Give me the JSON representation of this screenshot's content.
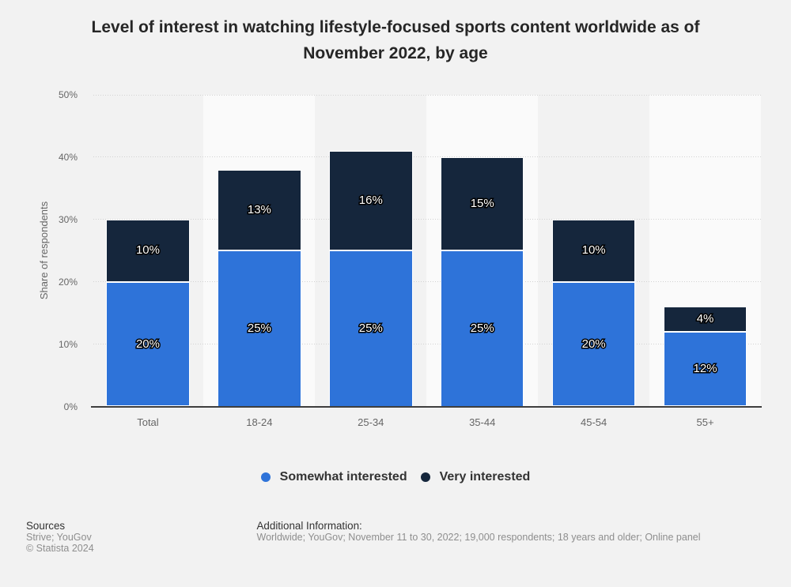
{
  "title": {
    "lines": [
      "Level of interest in watching lifestyle-focused sports content worldwide as of",
      "November 2022, by age"
    ]
  },
  "chart_data": {
    "type": "bar",
    "stacked": true,
    "orientation": "vertical",
    "title": "Level of interest in watching lifestyle-focused sports content worldwide as of November 2022, by age",
    "categories": [
      "Total",
      "18-24",
      "25-34",
      "35-44",
      "45-54",
      "55+"
    ],
    "series": [
      {
        "name": "Somewhat interested",
        "color": "#2e73d9",
        "values": [
          20,
          25,
          25,
          25,
          20,
          12
        ]
      },
      {
        "name": "Very interested",
        "color": "#15263c",
        "values": [
          10,
          13,
          16,
          15,
          10,
          4
        ]
      }
    ],
    "data_label_format": "{value}%",
    "xlabel": "",
    "ylabel": "Share of respondents",
    "ylim": [
      0,
      50
    ],
    "ytick_step": 10,
    "ytick_format": "{value}%",
    "grid": "horizontal-dotted",
    "legend_position": "bottom",
    "colors": {
      "background": "#f2f2f2",
      "alt_band": "#fafafa",
      "gridline": "#d4d4d4",
      "axis_line": "#3e3e3e",
      "tick_label": "#666666",
      "data_label": "#ffffff"
    }
  },
  "footer": {
    "sources_label": "Sources",
    "sources_value": "Strive; YouGov",
    "copyright": "© Statista 2024",
    "additional_label": "Additional Information:",
    "additional_value": "Worldwide; YouGov; November 11 to 30, 2022; 19,000 respondents; 18 years and older; Online panel"
  }
}
